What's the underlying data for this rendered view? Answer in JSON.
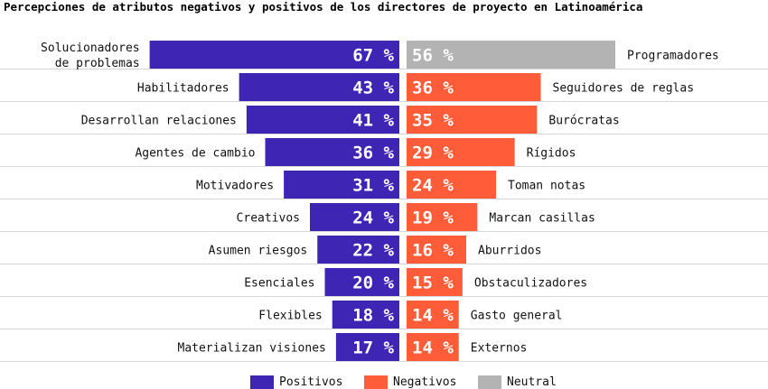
{
  "chart_data": {
    "type": "bar",
    "title": "Percepciones de atributos negativos y positivos de los directores de proyecto en Latinoamérica",
    "value_suffix": " %",
    "rows": [
      {
        "left_label": [
          "Solucionadores",
          "de problemas"
        ],
        "left_value": 67,
        "right_label": "Programadores",
        "right_value": 56,
        "right_series": "Neutral"
      },
      {
        "left_label": [
          "Habilitadores"
        ],
        "left_value": 43,
        "right_label": "Seguidores de reglas",
        "right_value": 36,
        "right_series": "Negativos"
      },
      {
        "left_label": [
          "Desarrollan relaciones"
        ],
        "left_value": 41,
        "right_label": "Burócratas",
        "right_value": 35,
        "right_series": "Negativos"
      },
      {
        "left_label": [
          "Agentes de cambio"
        ],
        "left_value": 36,
        "right_label": "Rígidos",
        "right_value": 29,
        "right_series": "Negativos"
      },
      {
        "left_label": [
          "Motivadores"
        ],
        "left_value": 31,
        "right_label": "Toman notas",
        "right_value": 24,
        "right_series": "Negativos"
      },
      {
        "left_label": [
          "Creativos"
        ],
        "left_value": 24,
        "right_label": "Marcan casillas",
        "right_value": 19,
        "right_series": "Negativos"
      },
      {
        "left_label": [
          "Asumen riesgos"
        ],
        "left_value": 22,
        "right_label": "Aburridos",
        "right_value": 16,
        "right_series": "Negativos"
      },
      {
        "left_label": [
          "Esenciales"
        ],
        "left_value": 20,
        "right_label": "Obstaculizadores",
        "right_value": 15,
        "right_series": "Negativos"
      },
      {
        "left_label": [
          "Flexibles"
        ],
        "left_value": 18,
        "right_label": "Gasto general",
        "right_value": 14,
        "right_series": "Negativos"
      },
      {
        "left_label": [
          "Materializan visiones"
        ],
        "left_value": 17,
        "right_label": "Externos",
        "right_value": 14,
        "right_series": "Negativos"
      }
    ],
    "legend": [
      {
        "name": "Positivos",
        "color": "#3f25b3"
      },
      {
        "name": "Negativos",
        "color": "#ff5c39"
      },
      {
        "name": "Neutral",
        "color": "#b3b3b3"
      }
    ],
    "colors": {
      "Positivos": "#3f25b3",
      "Negativos": "#ff5c39",
      "Neutral": "#b3b3b3"
    }
  }
}
